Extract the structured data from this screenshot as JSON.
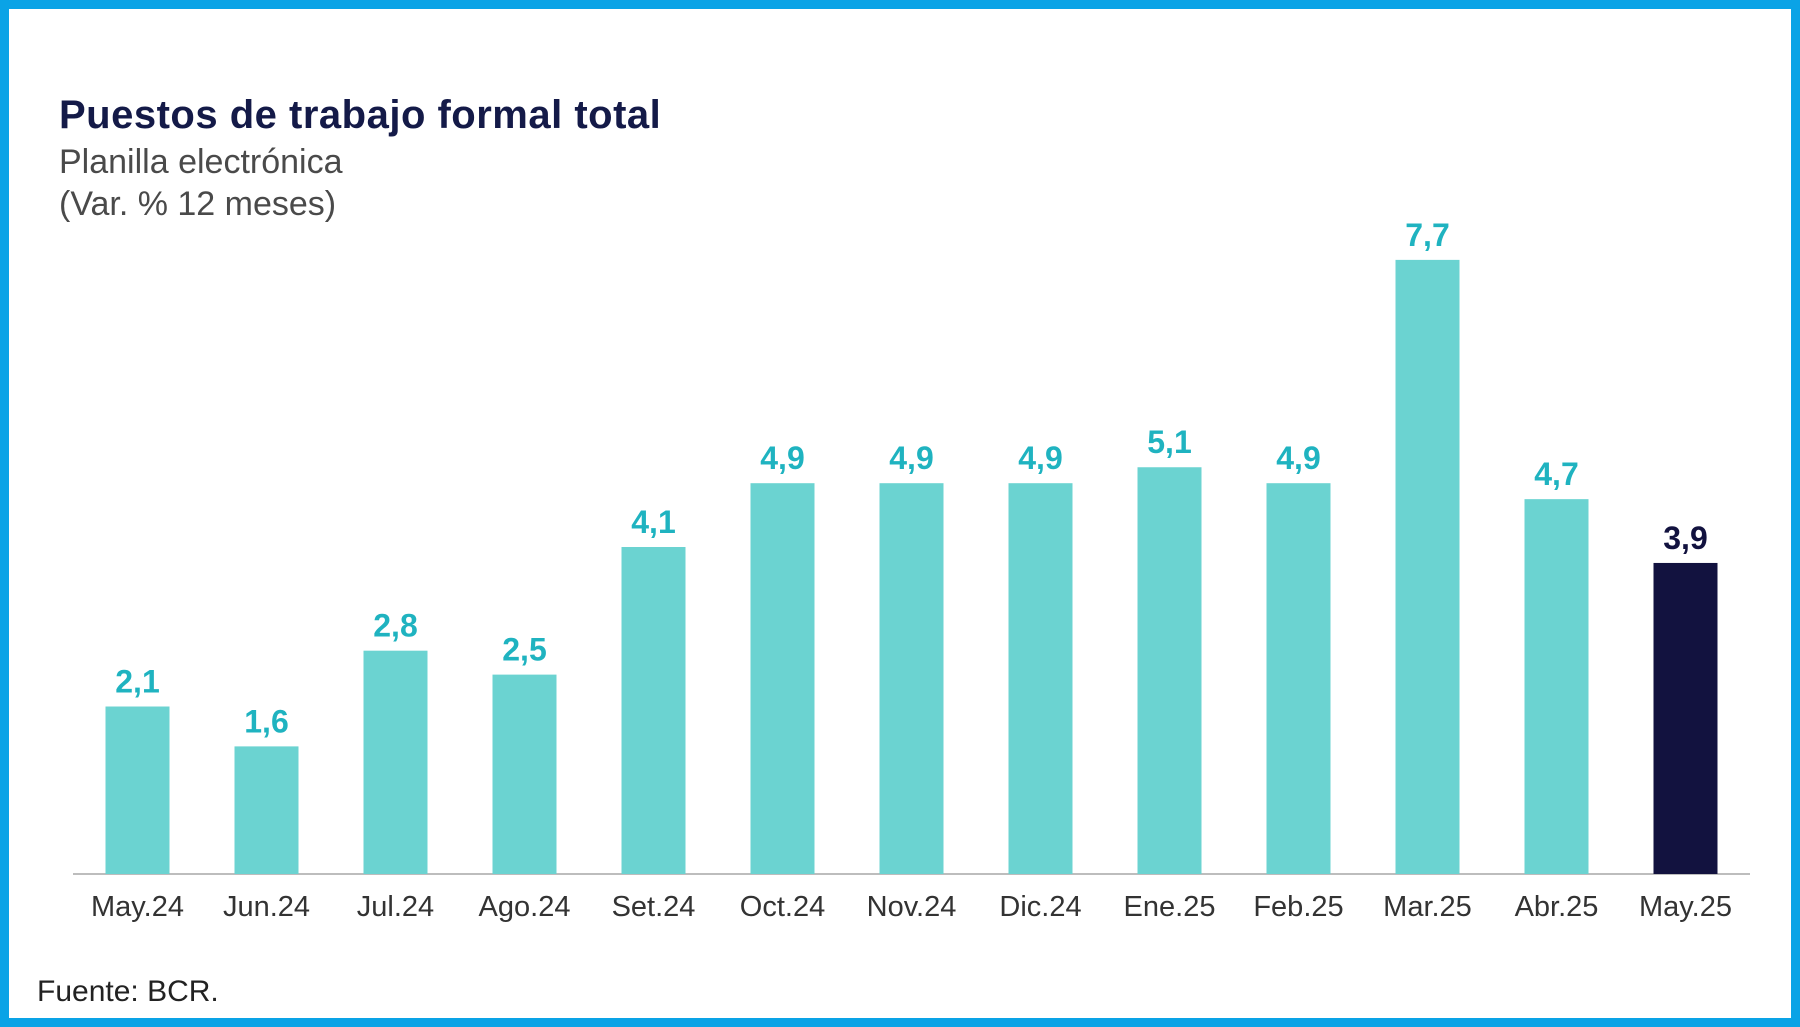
{
  "chart_data": {
    "type": "bar",
    "title": "Puestos de trabajo formal total",
    "subtitle": "Planilla electrónica",
    "ylabel": "(Var. % 12 meses)",
    "categories": [
      "May.24",
      "Jun.24",
      "Jul.24",
      "Ago.24",
      "Set.24",
      "Oct.24",
      "Nov.24",
      "Dic.24",
      "Ene.25",
      "Feb.25",
      "Mar.25",
      "Abr.25",
      "May.25"
    ],
    "values": [
      2.1,
      1.6,
      2.8,
      2.5,
      4.1,
      4.9,
      4.9,
      4.9,
      5.1,
      4.9,
      7.7,
      4.7,
      3.9
    ],
    "value_labels": [
      "2,1",
      "1,6",
      "2,8",
      "2,5",
      "4,1",
      "4,9",
      "4,9",
      "4,9",
      "5,1",
      "4,9",
      "7,7",
      "4,7",
      "3,9"
    ],
    "highlight_index": 12,
    "ylim": [
      0,
      8
    ],
    "grid": false,
    "colors": {
      "bar": "#6bd3d1",
      "highlight_bar": "#12123f",
      "label": "#1fb3c0",
      "highlight_label": "#12123f",
      "axis": "#bdbdbd",
      "frame": "#0aa3e6"
    }
  },
  "source": "Fuente: BCR."
}
